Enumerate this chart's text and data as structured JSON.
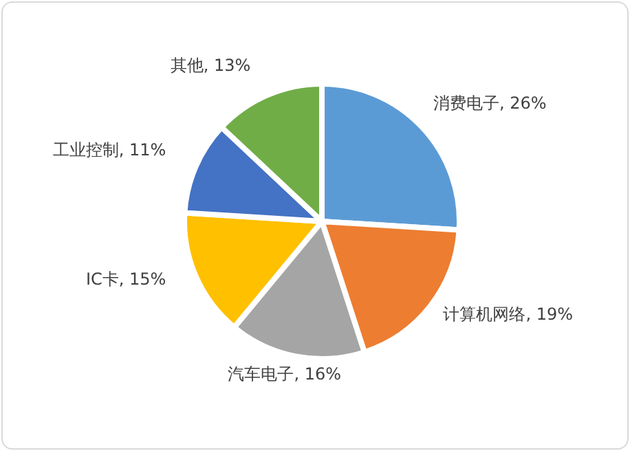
{
  "chart_data": {
    "type": "pie",
    "categories": [
      "消费电子",
      "计算机网络",
      "汽车电子",
      "IC卡",
      "工业控制",
      "其他"
    ],
    "values": [
      26,
      19,
      16,
      15,
      11,
      13
    ],
    "colors": [
      "#5b9bd5",
      "#ed7d31",
      "#a5a5a5",
      "#ffc000",
      "#4472c4",
      "#70ad47"
    ],
    "value_labels": [
      "26%",
      "19%",
      "16%",
      "15%",
      "11%",
      "13%"
    ],
    "legend": false
  }
}
